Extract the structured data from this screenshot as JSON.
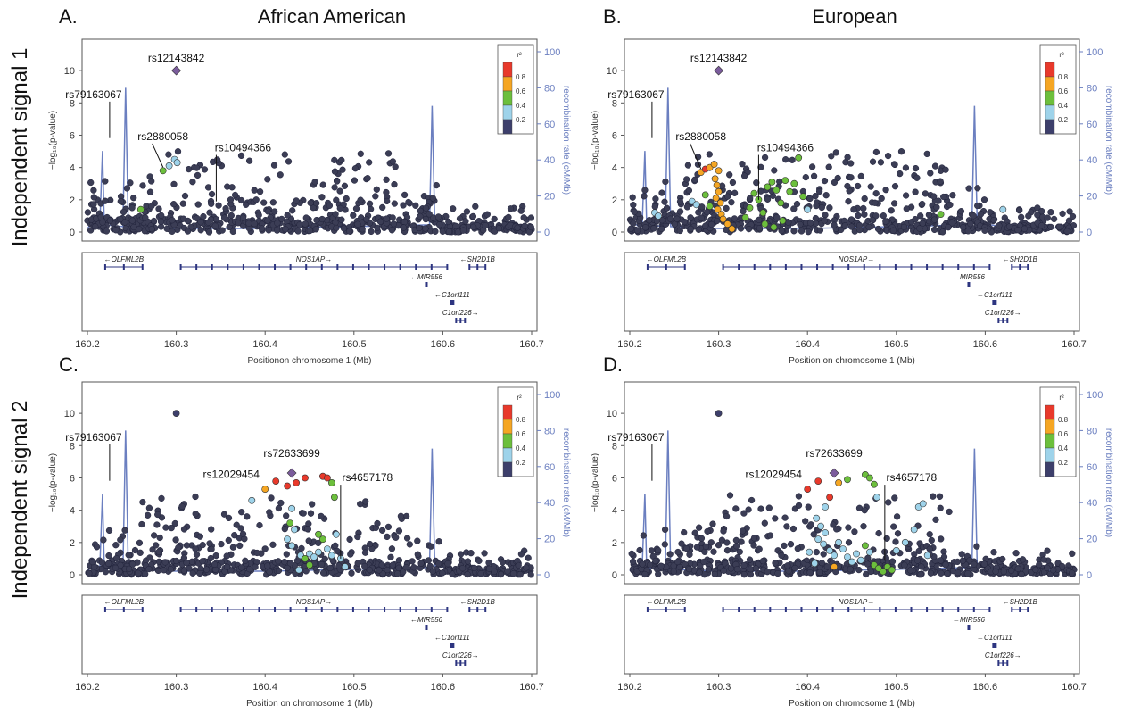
{
  "figure": {
    "row_labels": [
      "Independent signal 1",
      "Independent signal 2"
    ],
    "column_titles": [
      "African American",
      "European"
    ]
  },
  "colors": {
    "r2_bins": [
      "#e8392b",
      "#f5a623",
      "#6cbf3c",
      "#9ed3ea",
      "#3d3f6b"
    ],
    "background_point": "#3b3d55",
    "recombination": "#6b7fc0",
    "index_snp": "#7b5c9c"
  },
  "gene_track": {
    "genes": [
      {
        "name": "OLFML2B",
        "start": 160.22,
        "end": 160.262,
        "row": 0,
        "direction": "left"
      },
      {
        "name": "NOS1AP",
        "start": 160.305,
        "end": 160.605,
        "row": 0,
        "direction": "right"
      },
      {
        "name": "SH2D1B",
        "start": 160.63,
        "end": 160.648,
        "row": 0,
        "direction": "left"
      },
      {
        "name": "MIR556",
        "start": 160.581,
        "end": 160.582,
        "row": 1,
        "direction": "left"
      },
      {
        "name": "C1orf111",
        "start": 160.609,
        "end": 160.612,
        "row": 2,
        "direction": "left"
      },
      {
        "name": "C1orf226",
        "start": 160.615,
        "end": 160.625,
        "row": 3,
        "direction": "right"
      }
    ]
  },
  "chart_data": [
    {
      "panel": "A.",
      "title": "African American",
      "type": "scatter",
      "xlabel": "Positionon chromosome 1 (Mb)",
      "ylabel": "−log₁₀(p-value)",
      "y2label": "recombination rate (cM/Mb)",
      "xlim": [
        160.2,
        160.7
      ],
      "ylim": [
        0,
        11.5
      ],
      "y2lim": [
        0,
        100
      ],
      "xticks": [
        "160.2",
        "160.3",
        "160.4",
        "160.5",
        "160.6",
        "160.7"
      ],
      "yticks": [
        "0",
        "2",
        "4",
        "6",
        "8",
        "10"
      ],
      "y2ticks": [
        "0",
        "20",
        "40",
        "60",
        "80",
        "100"
      ],
      "legend": {
        "title": "r²",
        "labels": [
          "0.8",
          "0.6",
          "0.4",
          "0.2"
        ],
        "placement": "top-right"
      },
      "seed": 11,
      "index_snp": {
        "x": 160.3,
        "y": 10.0
      },
      "labeled_snps": [
        {
          "name": "rs12143842",
          "x": 160.3,
          "y": 10.0
        },
        {
          "name": "rs79163067",
          "x": 160.225,
          "y": 5.6
        },
        {
          "name": "rs2880058",
          "x": 160.285,
          "y": 3.8
        },
        {
          "name": "rs10494366",
          "x": 160.345,
          "y": 1.9
        }
      ],
      "colored_points": [
        {
          "x": 160.285,
          "y": 3.8,
          "r2": 2
        },
        {
          "x": 160.292,
          "y": 4.1,
          "r2": 3
        },
        {
          "x": 160.298,
          "y": 4.5,
          "r2": 3
        },
        {
          "x": 160.301,
          "y": 4.3,
          "r2": 3
        },
        {
          "x": 160.26,
          "y": 1.4,
          "r2": 2
        }
      ]
    },
    {
      "panel": "B.",
      "title": "European",
      "type": "scatter",
      "xlabel": "Position on chromosome 1 (Mb)",
      "ylabel": "−log₁₀(p-value)",
      "y2label": "recombination rate (cM/Mb)",
      "xlim": [
        160.2,
        160.7
      ],
      "ylim": [
        0,
        11.5
      ],
      "y2lim": [
        0,
        100
      ],
      "xticks": [
        "160.2",
        "160.3",
        "160.4",
        "160.5",
        "160.6",
        "160.7"
      ],
      "yticks": [
        "0",
        "2",
        "4",
        "6",
        "8",
        "10"
      ],
      "y2ticks": [
        "0",
        "20",
        "40",
        "60",
        "80",
        "100"
      ],
      "legend": {
        "title": "r²",
        "labels": [
          "0.8",
          "0.6",
          "0.4",
          "0.2"
        ],
        "placement": "top-right"
      },
      "seed": 23,
      "index_snp": {
        "x": 160.3,
        "y": 10.0
      },
      "labeled_snps": [
        {
          "name": "rs12143842",
          "x": 160.3,
          "y": 10.0
        },
        {
          "name": "rs79163067",
          "x": 160.225,
          "y": 5.6
        },
        {
          "name": "rs2880058",
          "x": 160.28,
          "y": 3.7
        },
        {
          "name": "rs10494366",
          "x": 160.345,
          "y": 2.0
        }
      ],
      "colored_points": [
        {
          "x": 160.28,
          "y": 3.7,
          "r2": 1
        },
        {
          "x": 160.285,
          "y": 3.9,
          "r2": 0
        },
        {
          "x": 160.29,
          "y": 4.0,
          "r2": 1
        },
        {
          "x": 160.295,
          "y": 4.2,
          "r2": 1
        },
        {
          "x": 160.3,
          "y": 3.8,
          "r2": 1
        },
        {
          "x": 160.296,
          "y": 3.3,
          "r2": 1
        },
        {
          "x": 160.298,
          "y": 2.9,
          "r2": 1
        },
        {
          "x": 160.3,
          "y": 2.5,
          "r2": 1
        },
        {
          "x": 160.297,
          "y": 2.1,
          "r2": 1
        },
        {
          "x": 160.302,
          "y": 1.8,
          "r2": 1
        },
        {
          "x": 160.299,
          "y": 1.4,
          "r2": 1
        },
        {
          "x": 160.303,
          "y": 1.1,
          "r2": 1
        },
        {
          "x": 160.305,
          "y": 0.8,
          "r2": 1
        },
        {
          "x": 160.31,
          "y": 0.5,
          "r2": 1
        },
        {
          "x": 160.315,
          "y": 0.2,
          "r2": 1
        },
        {
          "x": 160.29,
          "y": 1.6,
          "r2": 2
        },
        {
          "x": 160.285,
          "y": 2.3,
          "r2": 2
        },
        {
          "x": 160.27,
          "y": 1.9,
          "r2": 3
        },
        {
          "x": 160.275,
          "y": 1.7,
          "r2": 3
        },
        {
          "x": 160.228,
          "y": 1.2,
          "r2": 3
        },
        {
          "x": 160.232,
          "y": 1.0,
          "r2": 3
        },
        {
          "x": 160.33,
          "y": 0.9,
          "r2": 2
        },
        {
          "x": 160.335,
          "y": 1.5,
          "r2": 2
        },
        {
          "x": 160.34,
          "y": 2.4,
          "r2": 2
        },
        {
          "x": 160.345,
          "y": 2.0,
          "r2": 2
        },
        {
          "x": 160.35,
          "y": 1.2,
          "r2": 2
        },
        {
          "x": 160.355,
          "y": 2.8,
          "r2": 2
        },
        {
          "x": 160.36,
          "y": 3.1,
          "r2": 2
        },
        {
          "x": 160.365,
          "y": 2.6,
          "r2": 2
        },
        {
          "x": 160.37,
          "y": 1.8,
          "r2": 2
        },
        {
          "x": 160.375,
          "y": 3.2,
          "r2": 2
        },
        {
          "x": 160.38,
          "y": 2.5,
          "r2": 2
        },
        {
          "x": 160.385,
          "y": 3.0,
          "r2": 2
        },
        {
          "x": 160.39,
          "y": 4.6,
          "r2": 2
        },
        {
          "x": 160.395,
          "y": 2.2,
          "r2": 2
        },
        {
          "x": 160.352,
          "y": 0.5,
          "r2": 2
        },
        {
          "x": 160.362,
          "y": 0.3,
          "r2": 2
        },
        {
          "x": 160.372,
          "y": 0.7,
          "r2": 2
        },
        {
          "x": 160.4,
          "y": 1.4,
          "r2": 3
        },
        {
          "x": 160.55,
          "y": 1.1,
          "r2": 2
        },
        {
          "x": 160.62,
          "y": 1.4,
          "r2": 3
        }
      ]
    },
    {
      "panel": "C.",
      "type": "scatter",
      "xlabel": "Position on chromosome 1 (Mb)",
      "ylabel": "−log₁₀(p-value)",
      "y2label": "recombination rate (cM/Mb)",
      "xlim": [
        160.2,
        160.7
      ],
      "ylim": [
        0,
        11.5
      ],
      "y2lim": [
        0,
        100
      ],
      "xticks": [
        "160.2",
        "160.3",
        "160.4",
        "160.5",
        "160.6",
        "160.7"
      ],
      "yticks": [
        "0",
        "2",
        "4",
        "6",
        "8",
        "10"
      ],
      "y2ticks": [
        "0",
        "20",
        "40",
        "60",
        "80",
        "100"
      ],
      "legend": {
        "title": "r²",
        "labels": [
          "0.8",
          "0.6",
          "0.4",
          "0.2"
        ],
        "placement": "top-right"
      },
      "seed": 37,
      "index_snp": {
        "x": 160.43,
        "y": 6.3
      },
      "labeled_snps": [
        {
          "name": "rs79163067",
          "x": 160.225,
          "y": 5.6
        },
        {
          "name": "rs72633699",
          "x": 160.43,
          "y": 6.3
        },
        {
          "name": "rs12029454",
          "x": 160.4,
          "y": 5.3
        },
        {
          "name": "rs4657178",
          "x": 160.485,
          "y": 1.0
        }
      ],
      "colored_points": [
        {
          "x": 160.3,
          "y": 10.0,
          "r2": 4
        },
        {
          "x": 160.4,
          "y": 5.3,
          "r2": 1
        },
        {
          "x": 160.385,
          "y": 4.6,
          "r2": 3
        },
        {
          "x": 160.412,
          "y": 5.8,
          "r2": 0
        },
        {
          "x": 160.425,
          "y": 5.5,
          "r2": 0
        },
        {
          "x": 160.435,
          "y": 5.7,
          "r2": 0
        },
        {
          "x": 160.445,
          "y": 6.0,
          "r2": 0
        },
        {
          "x": 160.465,
          "y": 6.1,
          "r2": 0
        },
        {
          "x": 160.47,
          "y": 6.0,
          "r2": 0
        },
        {
          "x": 160.475,
          "y": 5.7,
          "r2": 2
        },
        {
          "x": 160.478,
          "y": 4.8,
          "r2": 2
        },
        {
          "x": 160.43,
          "y": 4.1,
          "r2": 3
        },
        {
          "x": 160.428,
          "y": 3.2,
          "r2": 2
        },
        {
          "x": 160.433,
          "y": 2.8,
          "r2": 3
        },
        {
          "x": 160.425,
          "y": 2.2,
          "r2": 3
        },
        {
          "x": 160.43,
          "y": 1.8,
          "r2": 3
        },
        {
          "x": 160.44,
          "y": 1.2,
          "r2": 3
        },
        {
          "x": 160.445,
          "y": 1.0,
          "r2": 2
        },
        {
          "x": 160.45,
          "y": 1.3,
          "r2": 3
        },
        {
          "x": 160.455,
          "y": 1.1,
          "r2": 3
        },
        {
          "x": 160.46,
          "y": 1.4,
          "r2": 3
        },
        {
          "x": 160.465,
          "y": 2.2,
          "r2": 2
        },
        {
          "x": 160.47,
          "y": 1.6,
          "r2": 3
        },
        {
          "x": 160.475,
          "y": 1.2,
          "r2": 3
        },
        {
          "x": 160.48,
          "y": 2.5,
          "r2": 3
        },
        {
          "x": 160.46,
          "y": 2.5,
          "r2": 2
        },
        {
          "x": 160.485,
          "y": 1.0,
          "r2": 3
        },
        {
          "x": 160.49,
          "y": 0.5,
          "r2": 3
        },
        {
          "x": 160.438,
          "y": 0.3,
          "r2": 3
        },
        {
          "x": 160.45,
          "y": 0.6,
          "r2": 2
        }
      ]
    },
    {
      "panel": "D.",
      "type": "scatter",
      "xlabel": "Position on chromosome 1 (Mb)",
      "ylabel": "−log₁₀(p-value)",
      "y2label": "recombination rate (cM/Mb)",
      "xlim": [
        160.2,
        160.7
      ],
      "ylim": [
        0,
        11.5
      ],
      "y2lim": [
        0,
        100
      ],
      "xticks": [
        "160.2",
        "160.3",
        "160.4",
        "160.5",
        "160.6",
        "160.7"
      ],
      "yticks": [
        "0",
        "2",
        "4",
        "6",
        "8",
        "10"
      ],
      "y2ticks": [
        "0",
        "20",
        "40",
        "60",
        "80",
        "100"
      ],
      "legend": {
        "title": "r²",
        "labels": [
          "0.8",
          "0.6",
          "0.4",
          "0.2"
        ],
        "placement": "top-right"
      },
      "seed": 53,
      "index_snp": {
        "x": 160.43,
        "y": 6.3
      },
      "labeled_snps": [
        {
          "name": "rs79163067",
          "x": 160.225,
          "y": 5.6
        },
        {
          "name": "rs72633699",
          "x": 160.43,
          "y": 6.3
        },
        {
          "name": "rs12029454",
          "x": 160.4,
          "y": 5.3
        },
        {
          "name": "rs4657178",
          "x": 160.487,
          "y": 0.9
        }
      ],
      "colored_points": [
        {
          "x": 160.3,
          "y": 10.0,
          "r2": 4
        },
        {
          "x": 160.4,
          "y": 5.3,
          "r2": 0
        },
        {
          "x": 160.412,
          "y": 5.8,
          "r2": 0
        },
        {
          "x": 160.425,
          "y": 4.8,
          "r2": 0
        },
        {
          "x": 160.435,
          "y": 5.7,
          "r2": 1
        },
        {
          "x": 160.445,
          "y": 5.9,
          "r2": 2
        },
        {
          "x": 160.465,
          "y": 6.2,
          "r2": 2
        },
        {
          "x": 160.47,
          "y": 6.0,
          "r2": 2
        },
        {
          "x": 160.475,
          "y": 5.6,
          "r2": 2
        },
        {
          "x": 160.478,
          "y": 4.8,
          "r2": 3
        },
        {
          "x": 160.42,
          "y": 4.2,
          "r2": 3
        },
        {
          "x": 160.41,
          "y": 3.5,
          "r2": 3
        },
        {
          "x": 160.415,
          "y": 3.0,
          "r2": 3
        },
        {
          "x": 160.42,
          "y": 2.6,
          "r2": 3
        },
        {
          "x": 160.412,
          "y": 2.2,
          "r2": 3
        },
        {
          "x": 160.418,
          "y": 1.9,
          "r2": 3
        },
        {
          "x": 160.425,
          "y": 1.5,
          "r2": 3
        },
        {
          "x": 160.43,
          "y": 1.2,
          "r2": 3
        },
        {
          "x": 160.435,
          "y": 2.0,
          "r2": 3
        },
        {
          "x": 160.44,
          "y": 1.6,
          "r2": 3
        },
        {
          "x": 160.445,
          "y": 1.1,
          "r2": 3
        },
        {
          "x": 160.45,
          "y": 0.8,
          "r2": 3
        },
        {
          "x": 160.455,
          "y": 1.3,
          "r2": 3
        },
        {
          "x": 160.46,
          "y": 0.9,
          "r2": 3
        },
        {
          "x": 160.465,
          "y": 1.8,
          "r2": 2
        },
        {
          "x": 160.47,
          "y": 1.4,
          "r2": 3
        },
        {
          "x": 160.475,
          "y": 0.6,
          "r2": 2
        },
        {
          "x": 160.48,
          "y": 0.4,
          "r2": 2
        },
        {
          "x": 160.485,
          "y": 0.2,
          "r2": 2
        },
        {
          "x": 160.49,
          "y": 0.5,
          "r2": 2
        },
        {
          "x": 160.495,
          "y": 0.3,
          "r2": 2
        },
        {
          "x": 160.43,
          "y": 0.5,
          "r2": 1
        },
        {
          "x": 160.5,
          "y": 1.5,
          "r2": 3
        },
        {
          "x": 160.51,
          "y": 2.0,
          "r2": 3
        },
        {
          "x": 160.52,
          "y": 2.8,
          "r2": 3
        },
        {
          "x": 160.525,
          "y": 4.2,
          "r2": 3
        },
        {
          "x": 160.53,
          "y": 4.4,
          "r2": 3
        },
        {
          "x": 160.535,
          "y": 1.2,
          "r2": 3
        },
        {
          "x": 160.408,
          "y": 0.7,
          "r2": 3
        },
        {
          "x": 160.402,
          "y": 1.4,
          "r2": 3
        }
      ]
    }
  ]
}
